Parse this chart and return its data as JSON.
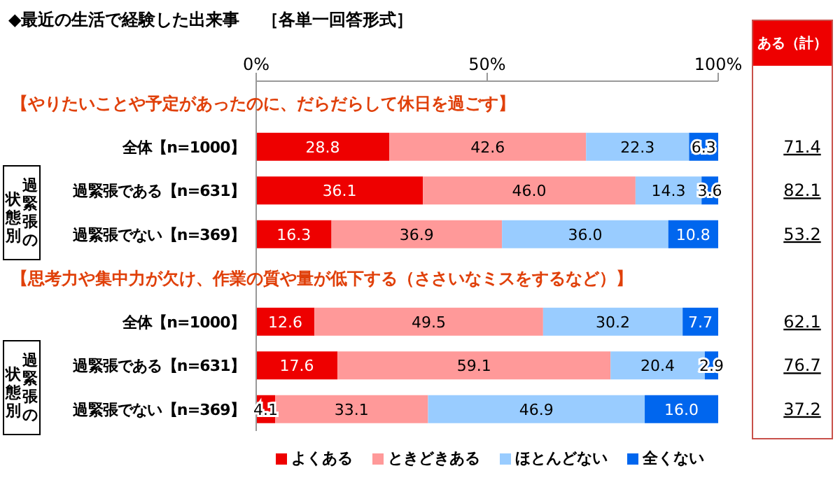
{
  "chart_data": {
    "type": "bar",
    "orientation": "horizontal",
    "stacked": true,
    "title": "◆最近の生活で経験した出来事",
    "subtitle": "［各単一回答形式］",
    "categories": [
      null,
      "全体【n=1000】",
      "過緊張である【n=631】",
      "過緊張でない【n=369】",
      null,
      "全体【n=1000】",
      "過緊張である【n=631】",
      "過緊張でない【n=369】"
    ],
    "series": [
      {
        "name": "よくある",
        "color": "#ee0000",
        "values": [
          null,
          28.8,
          36.1,
          16.3,
          null,
          12.6,
          17.6,
          4.1
        ],
        "value_labels": [
          null,
          "28.8",
          "36.1",
          "16.3",
          null,
          "12.6",
          "17.6",
          "4.1"
        ]
      },
      {
        "name": "ときどきある",
        "color": "#ff9999",
        "values": [
          null,
          42.6,
          46.0,
          36.9,
          null,
          49.5,
          59.1,
          33.1
        ],
        "value_labels": [
          null,
          "42.6",
          "46.0",
          "36.9",
          null,
          "49.5",
          "59.1",
          "33.1"
        ]
      },
      {
        "name": "ほとんどない",
        "color": "#99ccff",
        "values": [
          null,
          22.3,
          14.3,
          36.0,
          null,
          30.2,
          20.4,
          46.9
        ],
        "value_labels": [
          null,
          "22.3",
          "14.3",
          "36.0",
          null,
          "30.2",
          "20.4",
          "46.9"
        ]
      },
      {
        "name": "全くない",
        "color": "#0066ee",
        "values": [
          null,
          6.3,
          3.6,
          10.8,
          null,
          7.7,
          2.9,
          16.0
        ],
        "value_labels": [
          null,
          "6.3",
          "3.6",
          "10.8",
          null,
          "7.7",
          "2.9",
          "16.0"
        ]
      }
    ],
    "xlim": [
      0,
      100
    ],
    "xticks": [
      {
        "value": 0,
        "label": "0%"
      },
      {
        "value": 50,
        "label": "50%"
      },
      {
        "value": 100,
        "label": "100%"
      }
    ],
    "annotations": [
      "【やりたいことや予定があったのに、だらだらして休日を過ごす】",
      "【思考力や集中力が欠け、作業の質や量が低下する（ささいなミスをするなど）】",
      "過緊張の状態別",
      "過緊張の状態別",
      "ある（計）",
      "71.4",
      "82.1",
      "53.2",
      "62.1",
      "76.7",
      "37.2"
    ],
    "grid": false,
    "legend": "bottom"
  }
}
